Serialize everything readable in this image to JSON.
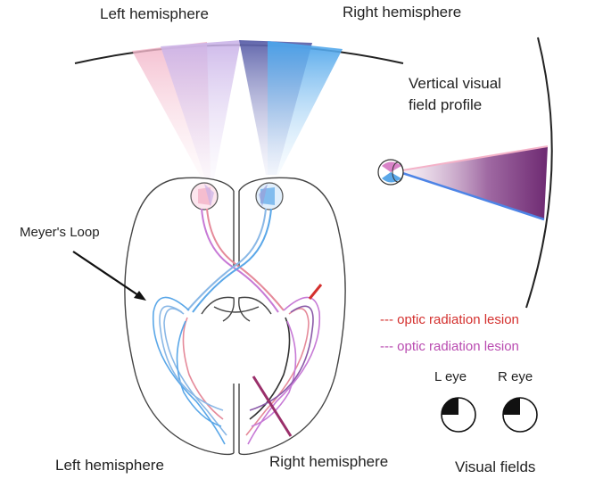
{
  "labels": {
    "top_left": "Left hemisphere",
    "top_right": "Right hemisphere",
    "vertical_profile_line1": "Vertical visual",
    "vertical_profile_line2": "field profile",
    "meyers_loop": "Meyer's Loop",
    "bottom_left": "Left hemisphere",
    "bottom_right": "Right hemisphere",
    "legend_red": "--- optic radiation lesion",
    "legend_pink": "--- optic radiation lesion",
    "l_eye": "L eye",
    "r_eye": "R eye",
    "visual_fields": "Visual fields"
  },
  "colors": {
    "left_pathway": "#e58a9a",
    "right_pathway": "#5aa7e8",
    "purple_pathway": "#c77ad6",
    "lesion_red": "#d4302e",
    "lesion_pink": "#b94bb0",
    "profile_dark": "#7a2f7c",
    "outline": "#444444"
  }
}
